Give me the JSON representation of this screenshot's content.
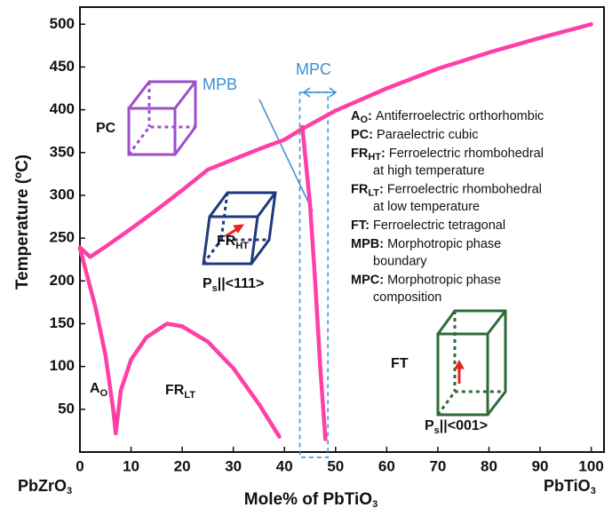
{
  "chart_data": {
    "type": "line",
    "x_label": {
      "main": "Mole% of PbTiO",
      "sub": "3"
    },
    "y_label": "Temperature (ºC)",
    "x_end_labels": [
      {
        "main": "PbZrO",
        "sub": "3"
      },
      {
        "main": "PbTiO",
        "sub": "3"
      }
    ],
    "xlim": [
      0,
      102.5
    ],
    "ylim": [
      0,
      520
    ],
    "xticks": [
      0,
      10,
      20,
      30,
      40,
      50,
      60,
      70,
      80,
      90,
      100
    ],
    "yticks": [
      50,
      100,
      150,
      200,
      250,
      300,
      350,
      400,
      450,
      500
    ],
    "color": "#ff3fa6",
    "series": [
      {
        "x": [
          0,
          2,
          5,
          10,
          15,
          20,
          25,
          30,
          35,
          40,
          43,
          50,
          60,
          70,
          80,
          90,
          100
        ],
        "values": [
          239,
          228,
          240,
          261,
          283,
          306,
          330,
          342,
          354,
          365,
          376,
          399,
          425,
          448,
          467,
          484,
          500
        ]
      },
      {
        "x": [
          0,
          3,
          5,
          6.5,
          7
        ],
        "values": [
          238,
          170,
          113,
          50,
          22
        ]
      },
      {
        "x": [
          7,
          8,
          10,
          13,
          17,
          20,
          25,
          30,
          35,
          39
        ],
        "values": [
          22,
          72,
          108,
          134,
          150,
          147,
          129,
          98,
          56,
          18
        ]
      },
      {
        "x": [
          43.5,
          45,
          46,
          47,
          48
        ],
        "values": [
          380,
          290,
          200,
          100,
          15
        ]
      }
    ],
    "mpc_range": [
      43,
      48.5
    ],
    "annotations": {
      "mpb": "MPB",
      "mpc": "MPC",
      "pc": "PC",
      "fr_ht": {
        "main": "FR",
        "sub": "HT"
      },
      "ps_111": {
        "main": "P",
        "sub": "s",
        "rest": "||<111>"
      },
      "a_o": {
        "main": "A",
        "sub": "O"
      },
      "fr_lt": {
        "main": "FR",
        "sub": "LT"
      },
      "ft": "FT",
      "ps_001": {
        "main": "P",
        "sub": "s",
        "rest": "||<001>"
      }
    },
    "definitions": [
      {
        "term": "A",
        "sub": "O",
        "lines": [
          "Antiferroelectric orthorhombic"
        ]
      },
      {
        "term": "PC",
        "sub": "",
        "lines": [
          "Paraelectric cubic"
        ]
      },
      {
        "term": "FR",
        "sub": "HT",
        "lines": [
          "Ferroelectric rhombohedral",
          "at high temperature"
        ]
      },
      {
        "term": "FR",
        "sub": "LT",
        "lines": [
          "Ferroelectric rhombohedral",
          "at low temperature"
        ]
      },
      {
        "term": "FT",
        "sub": "",
        "lines": [
          "Ferroelectric tetragonal"
        ]
      },
      {
        "term": "MPB",
        "sub": "",
        "lines": [
          "Morphotropic  phase",
          "boundary"
        ]
      },
      {
        "term": "MPC",
        "sub": "",
        "lines": [
          "Morphotropic  phase",
          "composition"
        ]
      }
    ]
  }
}
